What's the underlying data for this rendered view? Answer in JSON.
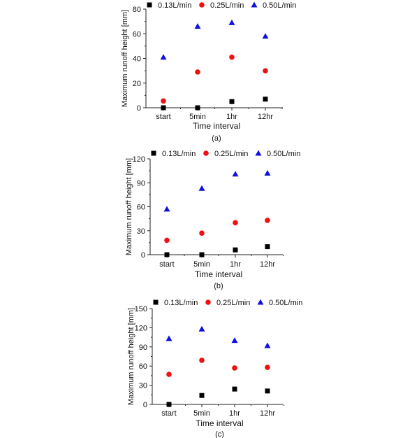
{
  "chart_data": [
    {
      "type": "scatter",
      "panel_label": "(a)",
      "xlabel": "Time interval",
      "ylabel": "Maximum runoff height [mm]",
      "categories": [
        "start",
        "5min",
        "1hr",
        "12hr"
      ],
      "ylim": [
        0,
        80
      ],
      "yticks": [
        0,
        20,
        40,
        60,
        80
      ],
      "grid": false,
      "legend": "top",
      "series": [
        {
          "name": "0.13L/min",
          "marker": "square",
          "color": "#000000",
          "values": [
            0,
            0,
            5,
            7
          ]
        },
        {
          "name": "0.25L/min",
          "marker": "circle",
          "color": "#ee1111",
          "values": [
            5.5,
            29,
            41,
            30
          ]
        },
        {
          "name": "0.50L/min",
          "marker": "triangle",
          "color": "#1111dd",
          "values": [
            41,
            66,
            69,
            58
          ]
        }
      ]
    },
    {
      "type": "scatter",
      "panel_label": "(b)",
      "xlabel": "Time interval",
      "ylabel": "Maximum runoff height [mm]",
      "categories": [
        "start",
        "5min",
        "1hr",
        "12hr"
      ],
      "ylim": [
        0,
        120
      ],
      "yticks": [
        0,
        30,
        60,
        90,
        120
      ],
      "grid": false,
      "legend": "top",
      "series": [
        {
          "name": "0.13L/min",
          "marker": "square",
          "color": "#000000",
          "values": [
            0,
            0,
            6,
            10
          ]
        },
        {
          "name": "0.25L/min",
          "marker": "circle",
          "color": "#ee1111",
          "values": [
            18,
            27,
            40,
            43
          ]
        },
        {
          "name": "0.50L/min",
          "marker": "triangle",
          "color": "#1111dd",
          "values": [
            57,
            83,
            101,
            102
          ]
        }
      ]
    },
    {
      "type": "scatter",
      "panel_label": "(c)",
      "xlabel": "Time interval",
      "ylabel": "Maximum runoff height [mm]",
      "categories": [
        "start",
        "5min",
        "1hr",
        "12hr"
      ],
      "ylim": [
        0,
        150
      ],
      "yticks": [
        0,
        30,
        60,
        90,
        120,
        150
      ],
      "grid": false,
      "legend": "top",
      "series": [
        {
          "name": "0.13L/min",
          "marker": "square",
          "color": "#000000",
          "values": [
            0,
            14,
            24,
            21
          ]
        },
        {
          "name": "0.25L/min",
          "marker": "circle",
          "color": "#ee1111",
          "values": [
            47,
            69,
            57,
            58
          ]
        },
        {
          "name": "0.50L/min",
          "marker": "triangle",
          "color": "#1111dd",
          "values": [
            103,
            118,
            100,
            92
          ]
        }
      ]
    }
  ]
}
